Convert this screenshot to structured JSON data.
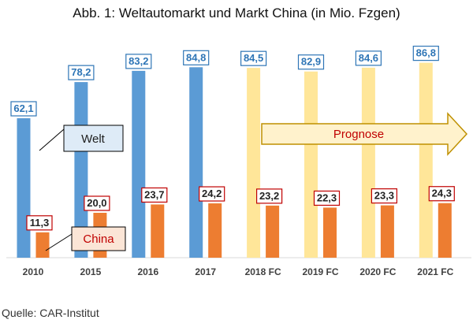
{
  "chart_data": {
    "type": "bar",
    "title": "Abb. 1: Weltautomarkt und Markt China (in Mio. Fzgen)",
    "categories": [
      "2010",
      "2015",
      "2016",
      "2017",
      "2018 FC",
      "2019 FC",
      "2020 FC",
      "2021 FC"
    ],
    "series": [
      {
        "name": "Welt",
        "values": [
          62.1,
          78.2,
          83.2,
          84.8,
          84.5,
          82.9,
          84.6,
          86.8
        ],
        "labels": [
          "62,1",
          "78,2",
          "83,2",
          "84,8",
          "84,5",
          "82,9",
          "84,6",
          "86,8"
        ]
      },
      {
        "name": "China",
        "values": [
          11.3,
          20.0,
          23.7,
          24.2,
          23.2,
          22.3,
          23.3,
          24.3
        ],
        "labels": [
          "11,3",
          "20,0",
          "23,7",
          "24,2",
          "23,2",
          "22,3",
          "23,3",
          "24,3"
        ]
      }
    ],
    "forecast_from_index": 4,
    "forecast_label": "Prognose",
    "ylim": [
      0,
      100
    ],
    "grid": false,
    "legend": "inline callouts",
    "colors": {
      "welt": "#5b9bd5",
      "welt_forecast": "#ffe699",
      "china": "#ed7d31",
      "welt_label_border": "#2e75b6",
      "welt_label_text": "#2e75b6",
      "china_label_border": "#c00000",
      "china_label_text": "#222222",
      "arrow_fill": "#fff2cc",
      "arrow_stroke": "#bf9000",
      "arrow_text": "#c00000"
    }
  },
  "footer": {
    "source": "Quelle: CAR-Institut"
  }
}
